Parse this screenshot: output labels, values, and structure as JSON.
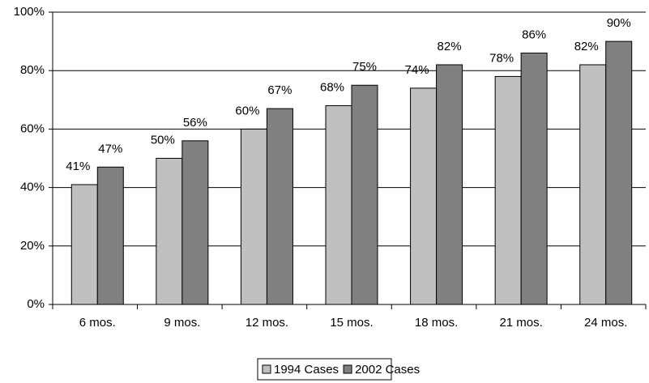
{
  "chart_data": {
    "type": "bar",
    "categories": [
      "6 mos.",
      "9 mos.",
      "12 mos.",
      "15 mos.",
      "18 mos.",
      "21 mos.",
      "24 mos."
    ],
    "series": [
      {
        "name": "1994 Cases",
        "color": "#c0c0c0",
        "values": [
          41,
          50,
          60,
          68,
          74,
          78,
          82
        ],
        "value_labels": [
          "41%",
          "50%",
          "60%",
          "68%",
          "74%",
          "78%",
          "82%"
        ]
      },
      {
        "name": "2002 Cases",
        "color": "#808080",
        "values": [
          47,
          56,
          67,
          75,
          82,
          86,
          90
        ],
        "value_labels": [
          "47%",
          "56%",
          "67%",
          "75%",
          "82%",
          "86%",
          "90%"
        ]
      }
    ],
    "ylim": [
      0,
      100
    ],
    "yticks": [
      {
        "value": 0,
        "label": "0%"
      },
      {
        "value": 20,
        "label": "20%"
      },
      {
        "value": 40,
        "label": "40%"
      },
      {
        "value": 60,
        "label": "60%"
      },
      {
        "value": 80,
        "label": "80%"
      },
      {
        "value": 100,
        "label": "100%"
      }
    ],
    "grid": true,
    "legend": "bottom"
  }
}
